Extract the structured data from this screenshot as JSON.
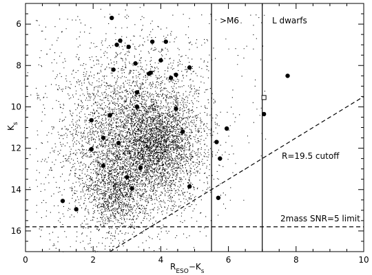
{
  "chart_data": {
    "type": "scatter",
    "xlabel": "R_ESO−K_s",
    "ylabel": "K_s",
    "xlim": [
      0,
      10
    ],
    "ylim": [
      17,
      5
    ],
    "y_inverted": true,
    "x_ticks": [
      0,
      2,
      4,
      6,
      8,
      10
    ],
    "y_ticks": [
      6,
      8,
      10,
      12,
      14,
      16
    ],
    "grid": false,
    "colors": {
      "points": "#000000",
      "axes": "#000000",
      "background": "#ffffff"
    },
    "background_field": {
      "description_visible": "dense cloud of small dots",
      "approx_x_range": [
        0.2,
        7.0
      ],
      "approx_y_range": [
        5.5,
        17.0
      ]
    },
    "highlighted_points": [
      [
        2.55,
        5.7
      ],
      [
        2.7,
        7.0
      ],
      [
        2.8,
        6.8
      ],
      [
        3.05,
        7.1
      ],
      [
        3.75,
        6.85
      ],
      [
        4.15,
        6.85
      ],
      [
        3.25,
        7.9
      ],
      [
        4.0,
        7.75
      ],
      [
        3.65,
        8.4
      ],
      [
        3.7,
        8.35
      ],
      [
        2.6,
        8.2
      ],
      [
        4.3,
        8.6
      ],
      [
        4.45,
        8.45
      ],
      [
        4.85,
        8.1
      ],
      [
        3.3,
        9.3
      ],
      [
        2.5,
        10.4
      ],
      [
        3.3,
        10.0
      ],
      [
        4.45,
        10.1
      ],
      [
        4.65,
        11.2
      ],
      [
        2.3,
        11.5
      ],
      [
        1.95,
        10.65
      ],
      [
        1.95,
        12.05
      ],
      [
        2.3,
        12.85
      ],
      [
        2.75,
        11.75
      ],
      [
        3.4,
        12.95
      ],
      [
        3.0,
        13.4
      ],
      [
        3.15,
        13.95
      ],
      [
        4.85,
        13.85
      ],
      [
        5.7,
        14.4
      ],
      [
        5.65,
        11.7
      ],
      [
        5.75,
        12.5
      ],
      [
        5.95,
        11.05
      ],
      [
        1.1,
        14.55
      ],
      [
        1.5,
        14.95
      ],
      [
        7.05,
        10.35
      ],
      [
        7.75,
        8.5
      ]
    ],
    "open_square_points": [
      [
        7.05,
        9.55
      ]
    ],
    "vertical_lines": [
      {
        "x": 5.5,
        "style": "solid",
        "label": ">M6"
      },
      {
        "x": 7.0,
        "style": "solid",
        "label": "L dwarfs"
      }
    ],
    "dashed_lines": [
      {
        "name": "2mass SNR=5 limit",
        "points": [
          [
            0,
            15.8
          ],
          [
            10,
            15.8
          ]
        ],
        "label": "2mass SNR=5 limit"
      },
      {
        "name": "R=19.5 cutoff",
        "points": [
          [
            2.5,
            17.0
          ],
          [
            10,
            9.5
          ]
        ],
        "label": "R=19.5 cutoff"
      }
    ]
  },
  "annotations": {
    "m6": ">M6",
    "ldwarfs": "L dwarfs",
    "cutoff": "R=19.5 cutoff",
    "snr": "2mass SNR=5 limit"
  },
  "axes": {
    "ylabel_main": "K",
    "ylabel_sub": "s",
    "xlabel_main": "R",
    "xlabel_sub1": "ESO",
    "xlabel_mid": "−K",
    "xlabel_sub2": "s"
  }
}
